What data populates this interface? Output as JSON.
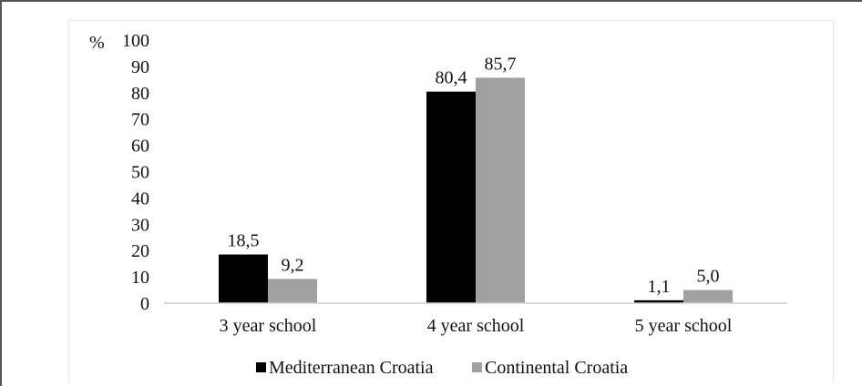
{
  "chart_data": {
    "type": "bar",
    "ylabel": "%",
    "ylim": [
      0,
      100
    ],
    "yticks": [
      "0",
      "10",
      "20",
      "30",
      "40",
      "50",
      "60",
      "70",
      "80",
      "90",
      "100"
    ],
    "categories": [
      "3 year school",
      "4 year school",
      "5 year school"
    ],
    "series": [
      {
        "name": "Mediterranean Croatia",
        "color": "#000000",
        "values": [
          18.5,
          80.4,
          1.1
        ],
        "labels": [
          "18,5",
          "80,4",
          "1,1"
        ]
      },
      {
        "name": "Continental Croatia",
        "color": "#a0a0a0",
        "values": [
          9.2,
          85.7,
          5.0
        ],
        "labels": [
          "9,2",
          "85,7",
          "5,0"
        ]
      }
    ],
    "legend": "bottom",
    "grid": false
  }
}
